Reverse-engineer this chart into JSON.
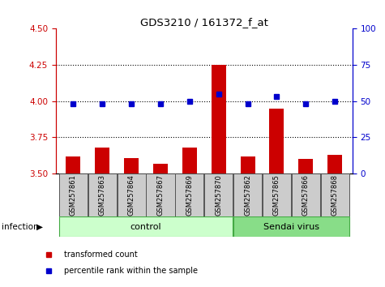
{
  "title": "GDS3210 / 161372_f_at",
  "samples": [
    "GSM257861",
    "GSM257863",
    "GSM257864",
    "GSM257867",
    "GSM257869",
    "GSM257870",
    "GSM257862",
    "GSM257865",
    "GSM257866",
    "GSM257868"
  ],
  "transformed_counts": [
    3.62,
    3.68,
    3.61,
    3.57,
    3.68,
    4.25,
    3.62,
    3.95,
    3.6,
    3.63
  ],
  "percentile_ranks": [
    48,
    48,
    48,
    48,
    50,
    55,
    48,
    53,
    48,
    50
  ],
  "bar_color": "#cc0000",
  "dot_color": "#0000cc",
  "ylim_left": [
    3.5,
    4.5
  ],
  "ylim_right": [
    0,
    100
  ],
  "yticks_left": [
    3.5,
    3.75,
    4.0,
    4.25,
    4.5
  ],
  "yticks_right": [
    0,
    25,
    50,
    75,
    100
  ],
  "grid_ticks": [
    3.75,
    4.0,
    4.25
  ],
  "control_indices": [
    0,
    1,
    2,
    3,
    4,
    5
  ],
  "sendai_indices": [
    6,
    7,
    8,
    9
  ],
  "group_labels": [
    "control",
    "Sendai virus"
  ],
  "control_color": "#ccffcc",
  "sendai_color": "#88dd88",
  "group_border_color": "#44aa44",
  "infection_label": "infection",
  "legend_items": [
    {
      "label": "transformed count",
      "color": "#cc0000"
    },
    {
      "label": "percentile rank within the sample",
      "color": "#0000cc"
    }
  ],
  "tick_color_left": "#cc0000",
  "tick_color_right": "#0000cc",
  "bar_width": 0.5,
  "background_color": "#ffffff",
  "sample_box_color": "#cccccc",
  "sample_box_edge": "#666666"
}
